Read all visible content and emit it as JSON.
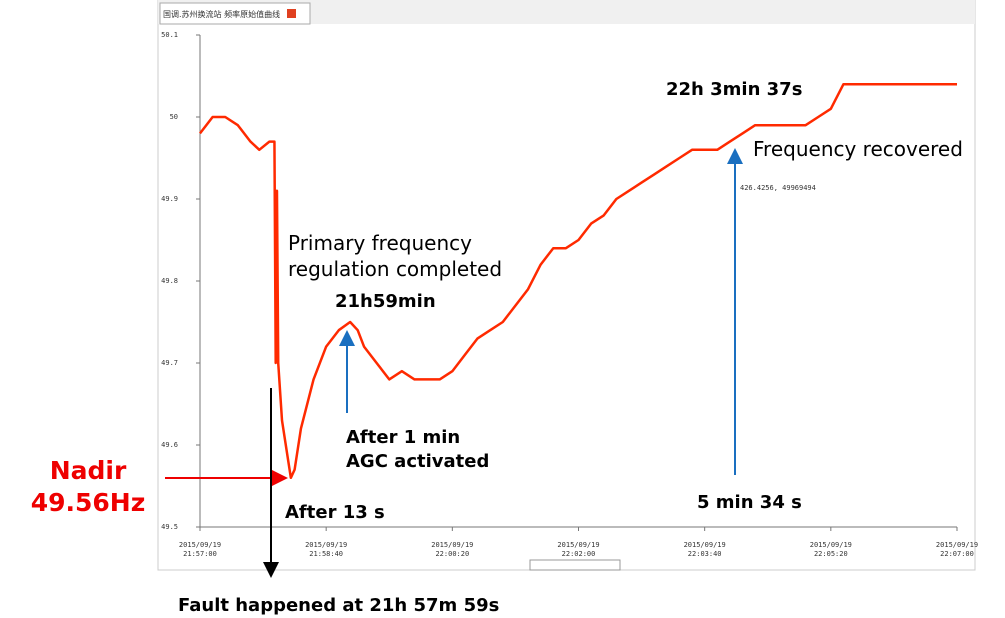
{
  "tab_title": "国调.苏州换流站 频率原始值曲线",
  "chart_data": {
    "type": "line",
    "x": [
      "21:57:00",
      "21:57:10",
      "21:57:20",
      "21:57:30",
      "21:57:40",
      "21:57:47",
      "21:57:55",
      "21:57:59",
      "21:58:00",
      "21:58:01",
      "21:58:02",
      "21:58:05",
      "21:58:10",
      "21:58:12",
      "21:58:15",
      "21:58:20",
      "21:58:30",
      "21:58:40",
      "21:58:50",
      "21:58:59",
      "21:59:05",
      "21:59:10",
      "21:59:20",
      "21:59:30",
      "21:59:40",
      "21:59:50",
      "22:00:00",
      "22:00:10",
      "22:00:20",
      "22:00:30",
      "22:00:40",
      "22:00:50",
      "22:01:00",
      "22:01:10",
      "22:01:20",
      "22:01:30",
      "22:01:40",
      "22:01:50",
      "22:02:00",
      "22:02:10",
      "22:02:20",
      "22:02:30",
      "22:02:40",
      "22:02:50",
      "22:03:00",
      "22:03:10",
      "22:03:20",
      "22:03:30",
      "22:03:40",
      "22:03:50",
      "22:04:00",
      "22:04:10",
      "22:04:20",
      "22:04:30",
      "22:04:40",
      "22:04:50",
      "22:05:00",
      "22:05:10",
      "22:05:20",
      "22:05:30",
      "22:05:40",
      "22:06:00",
      "22:06:20",
      "22:06:40",
      "22:07:00"
    ],
    "series": [
      {
        "name": "频率",
        "color": "#ff2a00",
        "values": [
          49.98,
          50.0,
          50.0,
          49.99,
          49.97,
          49.96,
          49.97,
          49.97,
          49.7,
          49.91,
          49.7,
          49.63,
          49.58,
          49.56,
          49.57,
          49.62,
          49.68,
          49.72,
          49.74,
          49.75,
          49.74,
          49.72,
          49.7,
          49.68,
          49.69,
          49.68,
          49.68,
          49.68,
          49.69,
          49.71,
          49.73,
          49.74,
          49.75,
          49.77,
          49.79,
          49.82,
          49.84,
          49.84,
          49.85,
          49.87,
          49.88,
          49.9,
          49.91,
          49.92,
          49.93,
          49.94,
          49.95,
          49.96,
          49.96,
          49.96,
          49.97,
          49.98,
          49.99,
          49.99,
          49.99,
          49.99,
          49.99,
          50.0,
          50.01,
          50.04,
          50.04,
          50.04,
          50.04,
          50.04,
          50.04
        ]
      }
    ],
    "xlim": [
      "21:57:00",
      "22:07:00"
    ],
    "xticks": [
      {
        "value": "21:57:00",
        "label": "2015/09/19\n21:57:00"
      },
      {
        "value": "21:58:40",
        "label": "2015/09/19\n21:58:40"
      },
      {
        "value": "22:00:20",
        "label": "2015/09/19\n22:00:20"
      },
      {
        "value": "22:02:00",
        "label": "2015/09/19\n22:02:00"
      },
      {
        "value": "22:03:40",
        "label": "2015/09/19\n22:03:40"
      },
      {
        "value": "22:05:20",
        "label": "2015/09/19\n22:05:20"
      },
      {
        "value": "22:07:00",
        "label": "2015/09/19\n22:07:00"
      }
    ],
    "ylim": [
      49.5,
      50.1
    ],
    "yticks": [
      {
        "value": 49.5,
        "label": "49.5"
      },
      {
        "value": 49.6,
        "label": "49.6"
      },
      {
        "value": 49.7,
        "label": "49.7"
      },
      {
        "value": 49.8,
        "label": "49.8"
      },
      {
        "value": 49.9,
        "label": "49.9"
      },
      {
        "value": 50,
        "label": "50"
      },
      {
        "value": 50.1,
        "label": "50.1"
      }
    ],
    "grid": false,
    "cursor_readout": "426.4256, 49969494",
    "annotations": {
      "primary": "Primary frequency\nregulation completed",
      "time_1": "21h59min",
      "agc": "After 1 min\nAGC activated",
      "nadir": "Nadir\n49.56Hz",
      "after13": "After 13 s",
      "fault": "Fault happened at 21h 57m 59s",
      "time_2": "22h 3min 37s",
      "recovered": "Frequency recovered",
      "duration": "5 min 34 s"
    }
  }
}
